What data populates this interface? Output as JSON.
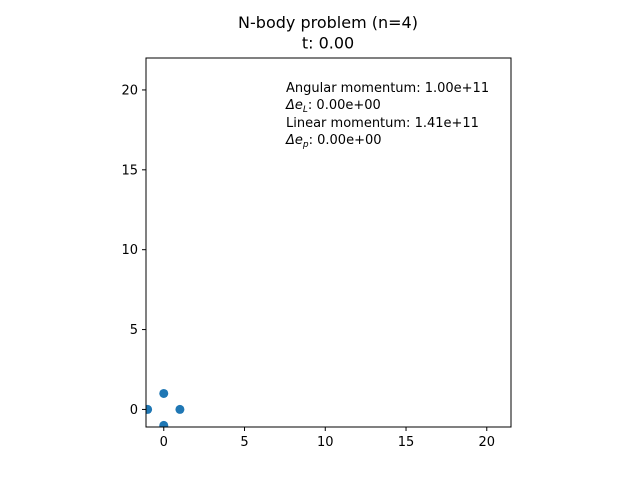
{
  "chart_data": {
    "type": "scatter",
    "title": "N-body problem (n=4)",
    "subtitle": "t: 0.00",
    "xlabel": "",
    "ylabel": "",
    "xlim": [
      -1.1,
      21.5
    ],
    "ylim": [
      -1.1,
      22.0
    ],
    "grid": false,
    "x_ticks": [
      0,
      5,
      10,
      15,
      20
    ],
    "y_ticks": [
      0,
      5,
      10,
      15,
      20
    ],
    "x_tick_labels": [
      "0",
      "5",
      "10",
      "15",
      "20"
    ],
    "y_tick_labels": [
      "0",
      "5",
      "10",
      "15",
      "20"
    ],
    "series": [
      {
        "color": "#1f77b4",
        "points": [
          {
            "x": 0,
            "y": 1
          },
          {
            "x": -1,
            "y": 0
          },
          {
            "x": 1,
            "y": 0
          },
          {
            "x": 0,
            "y": -1
          }
        ]
      }
    ],
    "annotations": {
      "angular_label": "Angular momentum: ",
      "angular_value": "1.00e+11",
      "delta_eL_symbol": "Δe",
      "delta_eL_sub": "L",
      "delta_eL_value": ": 0.00e+00",
      "linear_label": "Linear momentum: ",
      "linear_value": "1.41e+11",
      "delta_ep_symbol": "Δe",
      "delta_ep_sub": "p",
      "delta_ep_value": ": 0.00e+00"
    }
  }
}
